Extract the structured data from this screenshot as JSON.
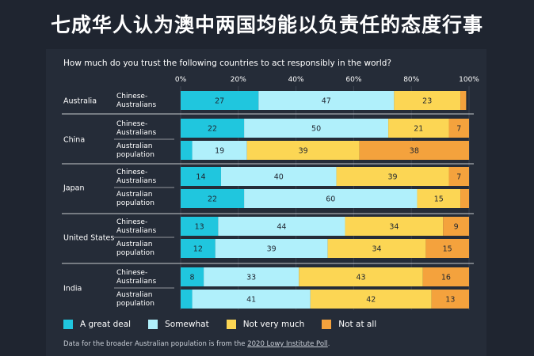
{
  "headline": "七成华人认为澳中两国均能以负责任的态度行事",
  "chart_data": {
    "type": "bar",
    "orientation": "horizontal",
    "stacked": true,
    "title": "How much do you trust the following countries to act responsibly in the world?",
    "xlim": [
      0,
      100
    ],
    "x_ticks": [
      "0%",
      "20%",
      "40%",
      "60%",
      "80%",
      "100%"
    ],
    "grid": true,
    "legend_position": "bottom-left",
    "series": [
      {
        "name": "A great deal",
        "color": "#20c6de"
      },
      {
        "name": "Somewhat",
        "color": "#b0f0fb"
      },
      {
        "name": "Not very much",
        "color": "#fcd654"
      },
      {
        "name": "Not at all",
        "color": "#f4a23d"
      }
    ],
    "groups": [
      {
        "country": "Australia",
        "rows": [
          {
            "label": [
              "Chinese-",
              "Australians"
            ],
            "values": [
              27,
              47,
              23,
              2
            ],
            "labels": [
              "27",
              "47",
              "23",
              ""
            ]
          }
        ]
      },
      {
        "country": "China",
        "rows": [
          {
            "label": [
              "Chinese-",
              "Australians"
            ],
            "values": [
              22,
              50,
              21,
              7
            ],
            "labels": [
              "22",
              "50",
              "21",
              "7"
            ]
          },
          {
            "label": [
              "Australian",
              "population"
            ],
            "values": [
              4,
              19,
              39,
              38
            ],
            "labels": [
              "",
              "19",
              "39",
              "38"
            ]
          }
        ]
      },
      {
        "country": "Japan",
        "rows": [
          {
            "label": [
              "Chinese-",
              "Australians"
            ],
            "values": [
              14,
              40,
              39,
              7
            ],
            "labels": [
              "14",
              "40",
              "39",
              "7"
            ]
          },
          {
            "label": [
              "Australian",
              "population"
            ],
            "values": [
              22,
              60,
              15,
              3
            ],
            "labels": [
              "22",
              "60",
              "15",
              ""
            ]
          }
        ]
      },
      {
        "country": "United States",
        "rows": [
          {
            "label": [
              "Chinese-",
              "Australians"
            ],
            "values": [
              13,
              44,
              34,
              9
            ],
            "labels": [
              "13",
              "44",
              "34",
              "9"
            ]
          },
          {
            "label": [
              "Australian",
              "population"
            ],
            "values": [
              12,
              39,
              34,
              15
            ],
            "labels": [
              "12",
              "39",
              "34",
              "15"
            ]
          }
        ]
      },
      {
        "country": "India",
        "rows": [
          {
            "label": [
              "Chinese-",
              "Australians"
            ],
            "values": [
              8,
              33,
              43,
              16
            ],
            "labels": [
              "8",
              "33",
              "43",
              "16"
            ]
          },
          {
            "label": [
              "Australian",
              "population"
            ],
            "values": [
              4,
              41,
              42,
              13
            ],
            "labels": [
              "",
              "41",
              "42",
              "13"
            ]
          }
        ]
      }
    ]
  },
  "footnote": {
    "text": "Data for the broader Australian population is from the ",
    "link": "2020 Lowy Institute Poll",
    "end": "."
  }
}
